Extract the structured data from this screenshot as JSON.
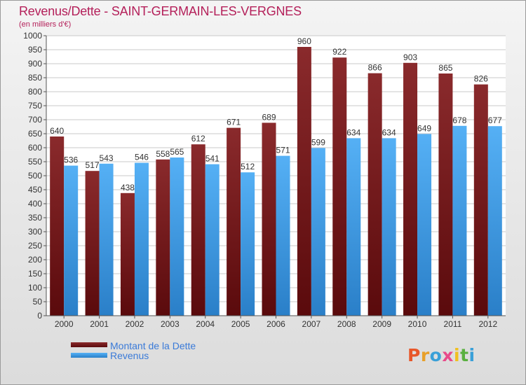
{
  "chart_data": {
    "type": "bar",
    "title": "Revenus/Dette - SAINT-GERMAIN-LES-VERGNES",
    "subtitle": "(en milliers d'€)",
    "categories": [
      "2000",
      "2001",
      "2002",
      "2003",
      "2004",
      "2005",
      "2006",
      "2007",
      "2008",
      "2009",
      "2010",
      "2011",
      "2012"
    ],
    "series": [
      {
        "name": "Montant de la Dette",
        "color": "#7a1a1e",
        "values": [
          640,
          517,
          438,
          558,
          612,
          671,
          689,
          960,
          922,
          866,
          903,
          865,
          826
        ]
      },
      {
        "name": "Revenus",
        "color": "#3d9be8",
        "values": [
          536,
          543,
          546,
          565,
          541,
          512,
          571,
          599,
          634,
          634,
          649,
          678,
          677
        ]
      }
    ],
    "ylim": [
      0,
      1000
    ],
    "ytick_step": 50,
    "grid": true,
    "legend_position": "bottom-left"
  },
  "logo": {
    "letters": [
      "P",
      "r",
      "o",
      "x",
      "i",
      "t",
      "i"
    ],
    "colors": [
      "#e8572a",
      "#e8a02a",
      "#3aa0d8",
      "#e84a8a",
      "#f0c020",
      "#5ab040",
      "#3aa0d8"
    ]
  }
}
